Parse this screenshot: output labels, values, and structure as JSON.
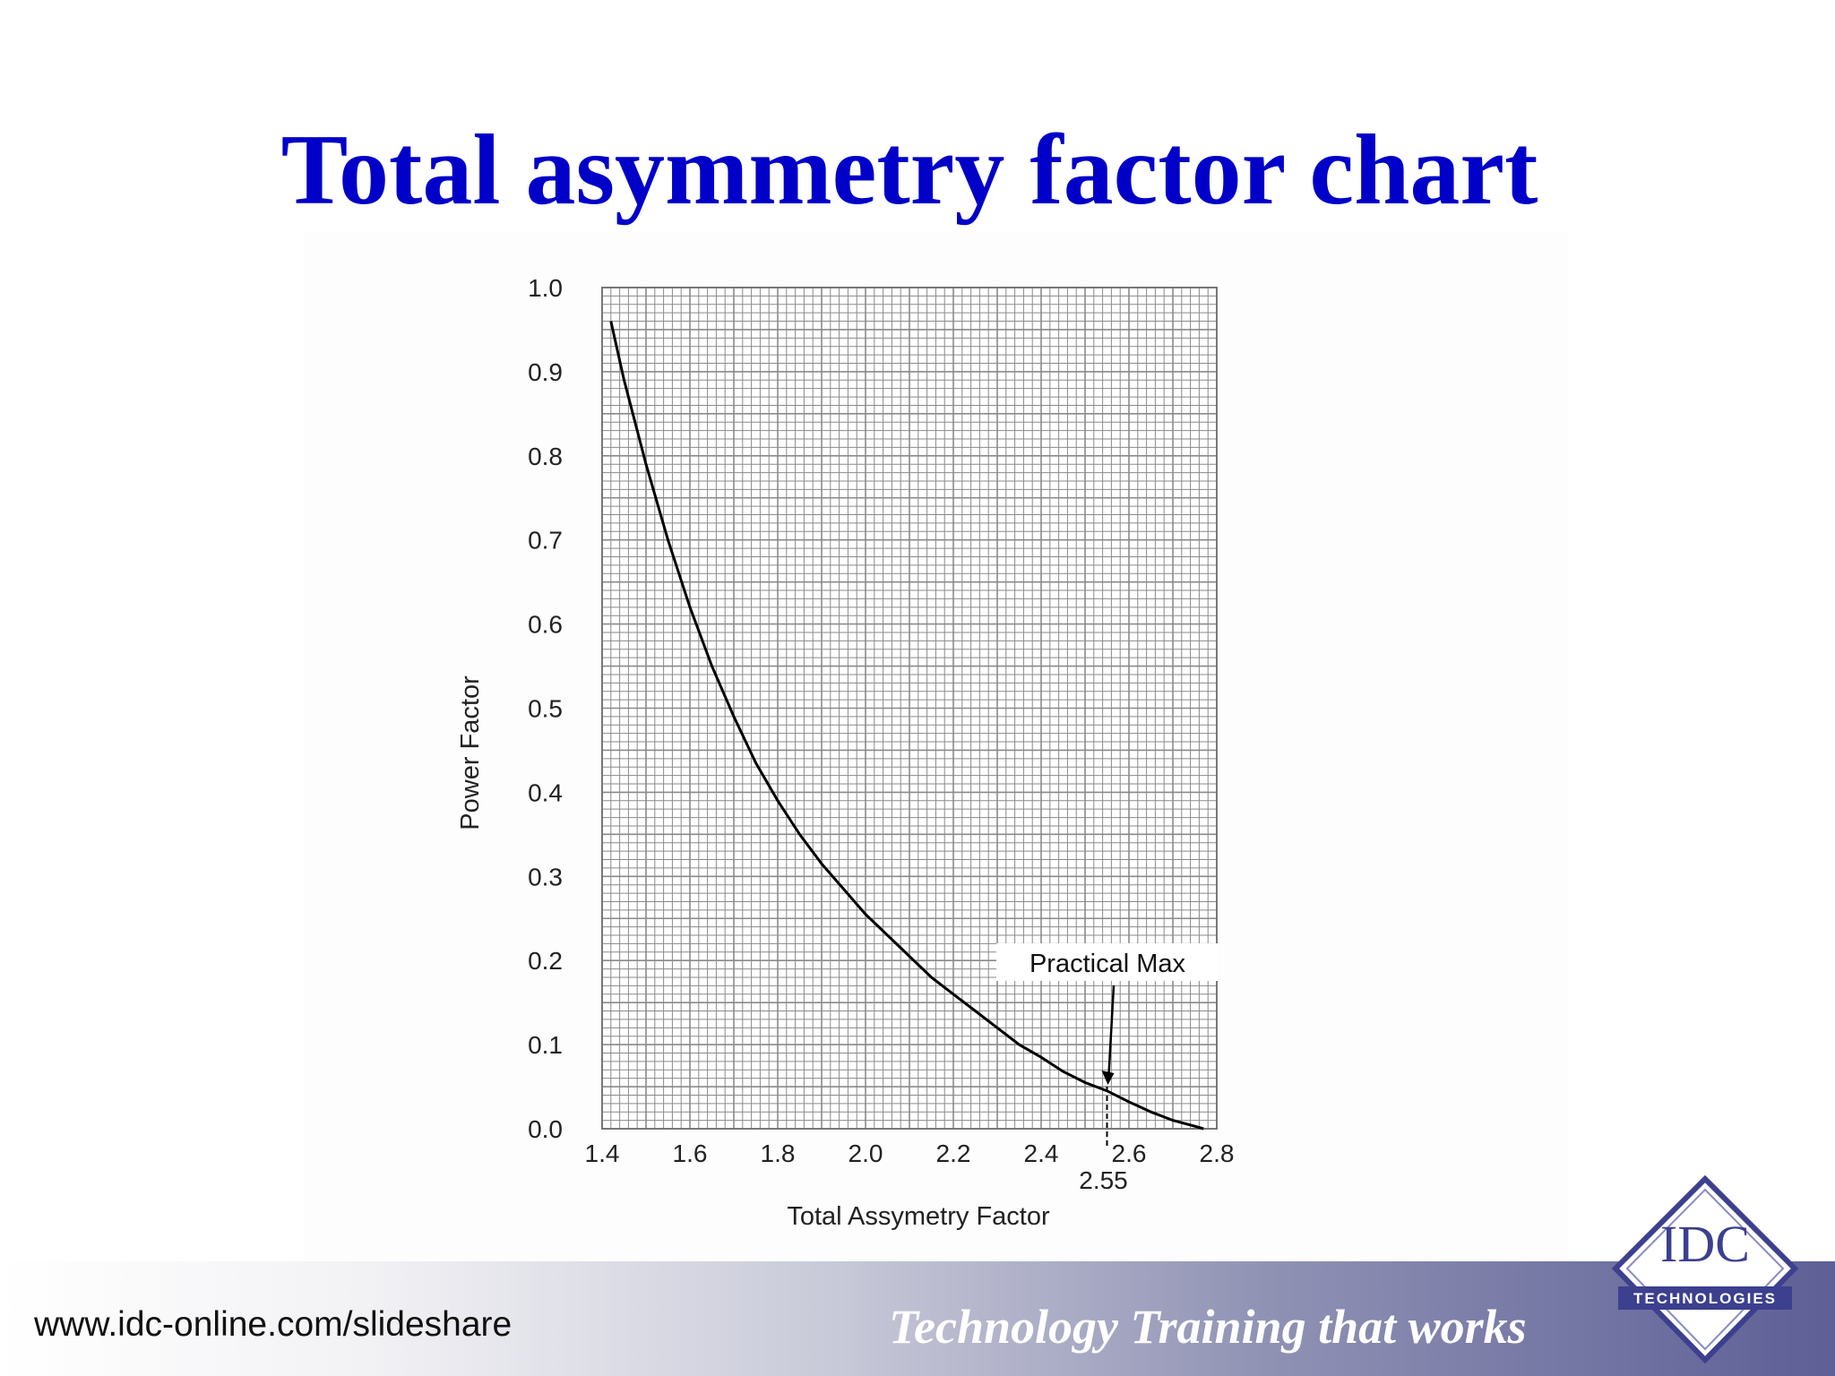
{
  "slide": {
    "title": "Total asymmetry factor chart"
  },
  "footer": {
    "url": "www.idc-online.com/slideshare",
    "slogan": "Technology Training that works"
  },
  "logo": {
    "name": "IDC",
    "subtitle": "TECHNOLOGIES",
    "colors": {
      "primary": "#3d3f8f",
      "secondary": "#ffffff"
    }
  },
  "colors": {
    "title": "#0000c8",
    "grid": "#8a8a8a",
    "curve": "#000000"
  },
  "chart_data": {
    "type": "line",
    "title": "",
    "xlabel": "Total Assymetry Factor",
    "ylabel": "Power Factor",
    "xlim": [
      1.4,
      2.8
    ],
    "ylim": [
      0.0,
      1.0
    ],
    "x_ticks": [
      "1.4",
      "1.6",
      "1.8",
      "2.0",
      "2.2",
      "2.4",
      "2.6",
      "2.8"
    ],
    "y_ticks": [
      "0.0",
      "0.1",
      "0.2",
      "0.3",
      "0.4",
      "0.5",
      "0.6",
      "0.7",
      "0.8",
      "0.9",
      "1.0"
    ],
    "grid": true,
    "legend": "none",
    "series": [
      {
        "x": [
          1.42,
          1.45,
          1.5,
          1.55,
          1.6,
          1.65,
          1.7,
          1.75,
          1.8,
          1.85,
          1.9,
          1.95,
          2.0,
          2.05,
          2.1,
          2.15,
          2.2,
          2.25,
          2.3,
          2.35,
          2.4,
          2.45,
          2.5,
          2.55,
          2.6,
          2.65,
          2.7,
          2.75,
          2.77
        ],
        "y": [
          0.96,
          0.89,
          0.79,
          0.7,
          0.62,
          0.55,
          0.49,
          0.435,
          0.39,
          0.35,
          0.315,
          0.285,
          0.255,
          0.23,
          0.205,
          0.18,
          0.16,
          0.14,
          0.12,
          0.1,
          0.085,
          0.068,
          0.055,
          0.045,
          0.032,
          0.02,
          0.01,
          0.003,
          0.0
        ]
      }
    ],
    "annotations": [
      {
        "text": "Practical Max",
        "x": 2.55,
        "y": 0.05
      },
      {
        "text": "2.55",
        "x": 2.55,
        "y": 0.0
      }
    ]
  }
}
